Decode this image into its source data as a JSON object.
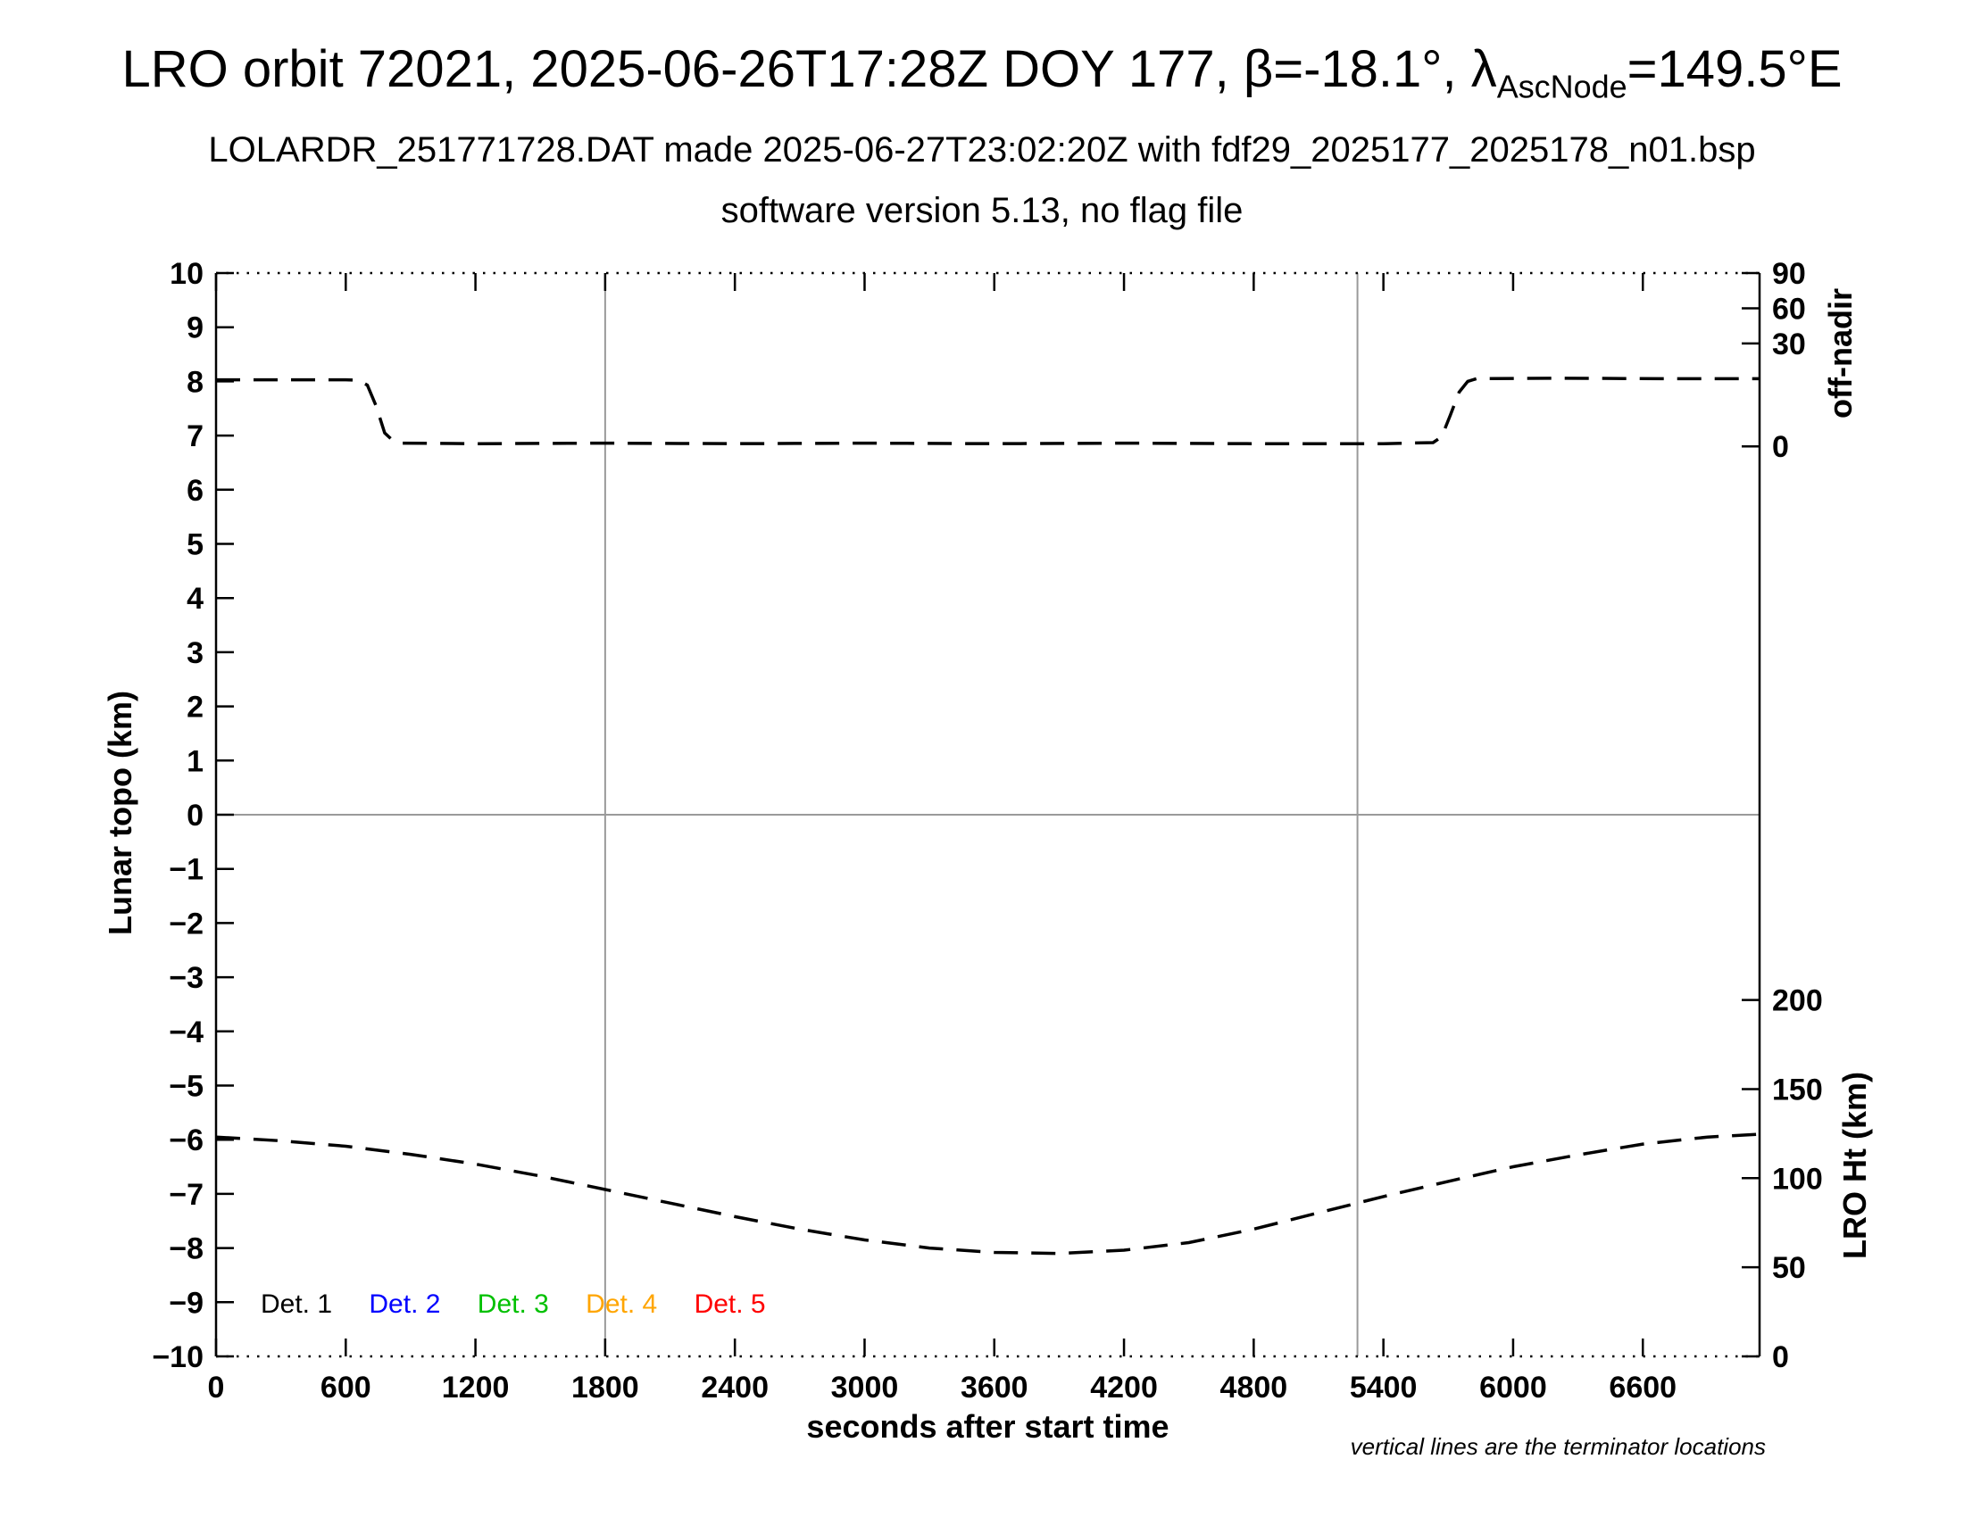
{
  "header": {
    "title_main": "LRO orbit 72021, 2025-06-26T17:28Z DOY 177, β=-18.1°, λ",
    "title_subscript": "AscNode",
    "title_suffix": "=149.5°E",
    "subtitle1": "LOLARDR_251771728.DAT made 2025-06-27T23:02:20Z with fdf29_2025177_2025178_n01.bsp",
    "subtitle2": "software version 5.13, no flag file"
  },
  "chart_data": {
    "type": "line",
    "title": "LRO orbit 72021, 2025-06-26T17:28Z DOY 177, β=-18.1°, λAscNode=149.5°E",
    "xlabel": "seconds after start time",
    "ylabel_left": "Lunar topo (km)",
    "ylabel_right_top": "off-nadir",
    "ylabel_right_bottom": "LRO Ht (km)",
    "footnote": "vertical lines are the terminator locations",
    "grid": "off",
    "legend_position": "bottom-left-inside",
    "xlim": [
      0,
      7140
    ],
    "ylim_left": [
      -10,
      10
    ],
    "x_ticks": [
      0,
      600,
      1200,
      1800,
      2400,
      3000,
      3600,
      4200,
      4800,
      5400,
      6000,
      6600
    ],
    "y_ticks_left": [
      -10,
      -9,
      -8,
      -7,
      -6,
      -5,
      -4,
      -3,
      -2,
      -1,
      0,
      1,
      2,
      3,
      4,
      5,
      6,
      7,
      8,
      9,
      10
    ],
    "offnadir_axis": {
      "ticks": [
        {
          "label": "90",
          "topo": 10
        },
        {
          "label": "60",
          "topo": 9.35
        },
        {
          "label": "30",
          "topo": 8.7
        },
        {
          "label": "0",
          "topo": 6.8
        }
      ]
    },
    "lro_ht_axis": {
      "ticks": [
        {
          "label": "200",
          "topo": -3.42
        },
        {
          "label": "150",
          "topo": -5.065
        },
        {
          "label": "100",
          "topo": -6.71
        },
        {
          "label": "50",
          "topo": -8.355
        },
        {
          "label": "0",
          "topo": -10
        }
      ]
    },
    "terminator_lines_x": [
      1800,
      5280
    ],
    "zero_line_y": 0,
    "colors": {
      "curve": "#000000",
      "gridline": "#9a9a9a"
    },
    "series": [
      {
        "name": "off-nadir angle (read on right top axis)",
        "color": "#000000",
        "style": "dashed",
        "points": [
          [
            0,
            8.03
          ],
          [
            300,
            8.03
          ],
          [
            600,
            8.03
          ],
          [
            660,
            8.02
          ],
          [
            700,
            7.93
          ],
          [
            740,
            7.55
          ],
          [
            780,
            7.05
          ],
          [
            820,
            6.9
          ],
          [
            860,
            6.86
          ],
          [
            1200,
            6.85
          ],
          [
            1800,
            6.86
          ],
          [
            2400,
            6.85
          ],
          [
            3000,
            6.86
          ],
          [
            3600,
            6.85
          ],
          [
            4200,
            6.86
          ],
          [
            4800,
            6.85
          ],
          [
            5400,
            6.85
          ],
          [
            5630,
            6.87
          ],
          [
            5670,
            6.98
          ],
          [
            5710,
            7.38
          ],
          [
            5750,
            7.8
          ],
          [
            5790,
            8.0
          ],
          [
            5830,
            8.05
          ],
          [
            6200,
            8.06
          ],
          [
            6700,
            8.05
          ],
          [
            7140,
            8.05
          ]
        ]
      },
      {
        "name": "LRO height (read on right bottom axis)",
        "color": "#000000",
        "style": "dashed",
        "points": [
          [
            0,
            -5.95
          ],
          [
            300,
            -6.02
          ],
          [
            600,
            -6.12
          ],
          [
            900,
            -6.27
          ],
          [
            1200,
            -6.45
          ],
          [
            1500,
            -6.67
          ],
          [
            1800,
            -6.92
          ],
          [
            2100,
            -7.17
          ],
          [
            2400,
            -7.42
          ],
          [
            2700,
            -7.65
          ],
          [
            3000,
            -7.85
          ],
          [
            3300,
            -8.0
          ],
          [
            3600,
            -8.08
          ],
          [
            3900,
            -8.1
          ],
          [
            4200,
            -8.04
          ],
          [
            4500,
            -7.9
          ],
          [
            4800,
            -7.65
          ],
          [
            5100,
            -7.35
          ],
          [
            5400,
            -7.05
          ],
          [
            5700,
            -6.77
          ],
          [
            6000,
            -6.5
          ],
          [
            6300,
            -6.28
          ],
          [
            6600,
            -6.08
          ],
          [
            6900,
            -5.95
          ],
          [
            7140,
            -5.9
          ]
        ]
      }
    ],
    "legend": [
      {
        "label": "Det. 1",
        "color": "#000000"
      },
      {
        "label": "Det. 2",
        "color": "#0000ff"
      },
      {
        "label": "Det. 3",
        "color": "#00c000"
      },
      {
        "label": "Det. 4",
        "color": "#ffa500"
      },
      {
        "label": "Det. 5",
        "color": "#ff0000"
      }
    ]
  }
}
